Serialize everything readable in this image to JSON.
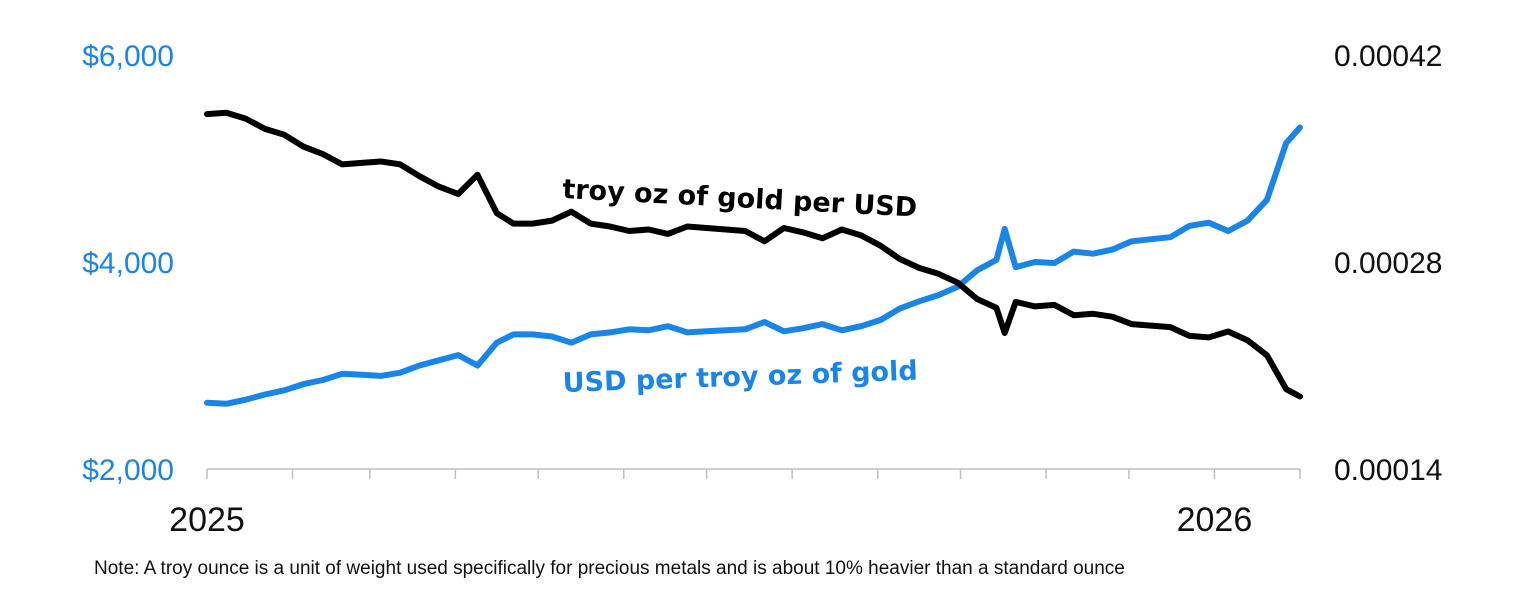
{
  "chart_data": {
    "type": "line",
    "colors": {
      "usd_per_oz": "#1a85e8",
      "oz_per_usd": "#000000",
      "axis": "#bfbfbf"
    },
    "x_ticks": [
      "2025",
      "2026"
    ],
    "x_range": [
      "2025-01",
      "2026-02"
    ],
    "y_left": {
      "range": [
        2000,
        6000
      ],
      "ticks": [
        2000,
        4000,
        6000
      ],
      "tick_labels": [
        "$2,000",
        "$4,000",
        "$6,000"
      ]
    },
    "y_right": {
      "range": [
        0.00014,
        0.00042
      ],
      "ticks": [
        0.00014,
        0.00028,
        0.00042
      ],
      "tick_labels": [
        "0.00014",
        "0.00028",
        "0.00042"
      ]
    },
    "series": [
      {
        "name": "USD per troy oz of gold",
        "axis": "left",
        "color": "#1a85e8",
        "x": [
          "2025-01-01",
          "2025-01-08",
          "2025-01-15",
          "2025-01-22",
          "2025-01-29",
          "2025-02-05",
          "2025-02-12",
          "2025-02-19",
          "2025-02-26",
          "2025-03-05",
          "2025-03-12",
          "2025-03-19",
          "2025-03-26",
          "2025-04-02",
          "2025-04-09",
          "2025-04-16",
          "2025-04-22",
          "2025-04-29",
          "2025-05-06",
          "2025-05-13",
          "2025-05-20",
          "2025-05-27",
          "2025-06-03",
          "2025-06-10",
          "2025-06-17",
          "2025-06-24",
          "2025-07-01",
          "2025-07-08",
          "2025-07-15",
          "2025-07-22",
          "2025-07-29",
          "2025-08-05",
          "2025-08-12",
          "2025-08-19",
          "2025-08-26",
          "2025-09-02",
          "2025-09-09",
          "2025-09-16",
          "2025-09-23",
          "2025-09-30",
          "2025-10-07",
          "2025-10-14",
          "2025-10-17",
          "2025-10-21",
          "2025-10-28",
          "2025-11-04",
          "2025-11-11",
          "2025-11-18",
          "2025-11-25",
          "2025-12-02",
          "2025-12-09",
          "2025-12-16",
          "2025-12-23",
          "2025-12-30",
          "2026-01-06",
          "2026-01-13",
          "2026-01-20",
          "2026-01-27",
          "2026-02-01"
        ],
        "values": [
          2640,
          2630,
          2670,
          2720,
          2760,
          2820,
          2860,
          2920,
          2910,
          2900,
          2930,
          3000,
          3050,
          3100,
          3000,
          3220,
          3300,
          3300,
          3280,
          3220,
          3300,
          3320,
          3350,
          3340,
          3380,
          3320,
          3330,
          3340,
          3350,
          3420,
          3330,
          3360,
          3400,
          3340,
          3380,
          3440,
          3550,
          3620,
          3680,
          3760,
          3920,
          4020,
          4320,
          3950,
          4000,
          3990,
          4100,
          4080,
          4120,
          4200,
          4220,
          4240,
          4350,
          4380,
          4300,
          4400,
          4600,
          5150,
          5300
        ]
      },
      {
        "name": "troy oz of gold per USD",
        "axis": "right",
        "color": "#000000",
        "x": [
          "2025-01-01",
          "2025-01-08",
          "2025-01-15",
          "2025-01-22",
          "2025-01-29",
          "2025-02-05",
          "2025-02-12",
          "2025-02-19",
          "2025-02-26",
          "2025-03-05",
          "2025-03-12",
          "2025-03-19",
          "2025-03-26",
          "2025-04-02",
          "2025-04-09",
          "2025-04-16",
          "2025-04-22",
          "2025-04-29",
          "2025-05-06",
          "2025-05-13",
          "2025-05-20",
          "2025-05-27",
          "2025-06-03",
          "2025-06-10",
          "2025-06-17",
          "2025-06-24",
          "2025-07-01",
          "2025-07-08",
          "2025-07-15",
          "2025-07-22",
          "2025-07-29",
          "2025-08-05",
          "2025-08-12",
          "2025-08-19",
          "2025-08-26",
          "2025-09-02",
          "2025-09-09",
          "2025-09-16",
          "2025-09-23",
          "2025-09-30",
          "2025-10-07",
          "2025-10-14",
          "2025-10-17",
          "2025-10-21",
          "2025-10-28",
          "2025-11-04",
          "2025-11-11",
          "2025-11-18",
          "2025-11-25",
          "2025-12-02",
          "2025-12-09",
          "2025-12-16",
          "2025-12-23",
          "2025-12-30",
          "2026-01-06",
          "2026-01-13",
          "2026-01-20",
          "2026-01-27",
          "2026-02-01"
        ],
        "values": [
          0.00038,
          0.000381,
          0.000377,
          0.00037,
          0.000366,
          0.000358,
          0.000353,
          0.000346,
          0.000347,
          0.000348,
          0.000346,
          0.000338,
          0.000331,
          0.000326,
          0.000339,
          0.000313,
          0.000306,
          0.000306,
          0.000308,
          0.000314,
          0.000306,
          0.000304,
          0.000301,
          0.000302,
          0.000299,
          0.000304,
          0.000303,
          0.000302,
          0.000301,
          0.000294,
          0.000303,
          0.0003,
          0.000296,
          0.000302,
          0.000298,
          0.000291,
          0.000282,
          0.000276,
          0.000272,
          0.000266,
          0.000255,
          0.000249,
          0.000232,
          0.000253,
          0.00025,
          0.000251,
          0.000244,
          0.000245,
          0.000243,
          0.000238,
          0.000237,
          0.000236,
          0.00023,
          0.000229,
          0.000233,
          0.000227,
          0.000217,
          0.000194,
          0.000189
        ]
      }
    ],
    "annotations": [
      {
        "text": "troy oz of gold per USD",
        "series": "troy oz of gold per USD"
      },
      {
        "text": "USD per troy oz of gold",
        "series": "USD per troy oz of gold"
      }
    ],
    "note": "Note: A troy ounce is a unit of weight used specifically for precious metals and is about 10% heavier than a standard ounce"
  }
}
